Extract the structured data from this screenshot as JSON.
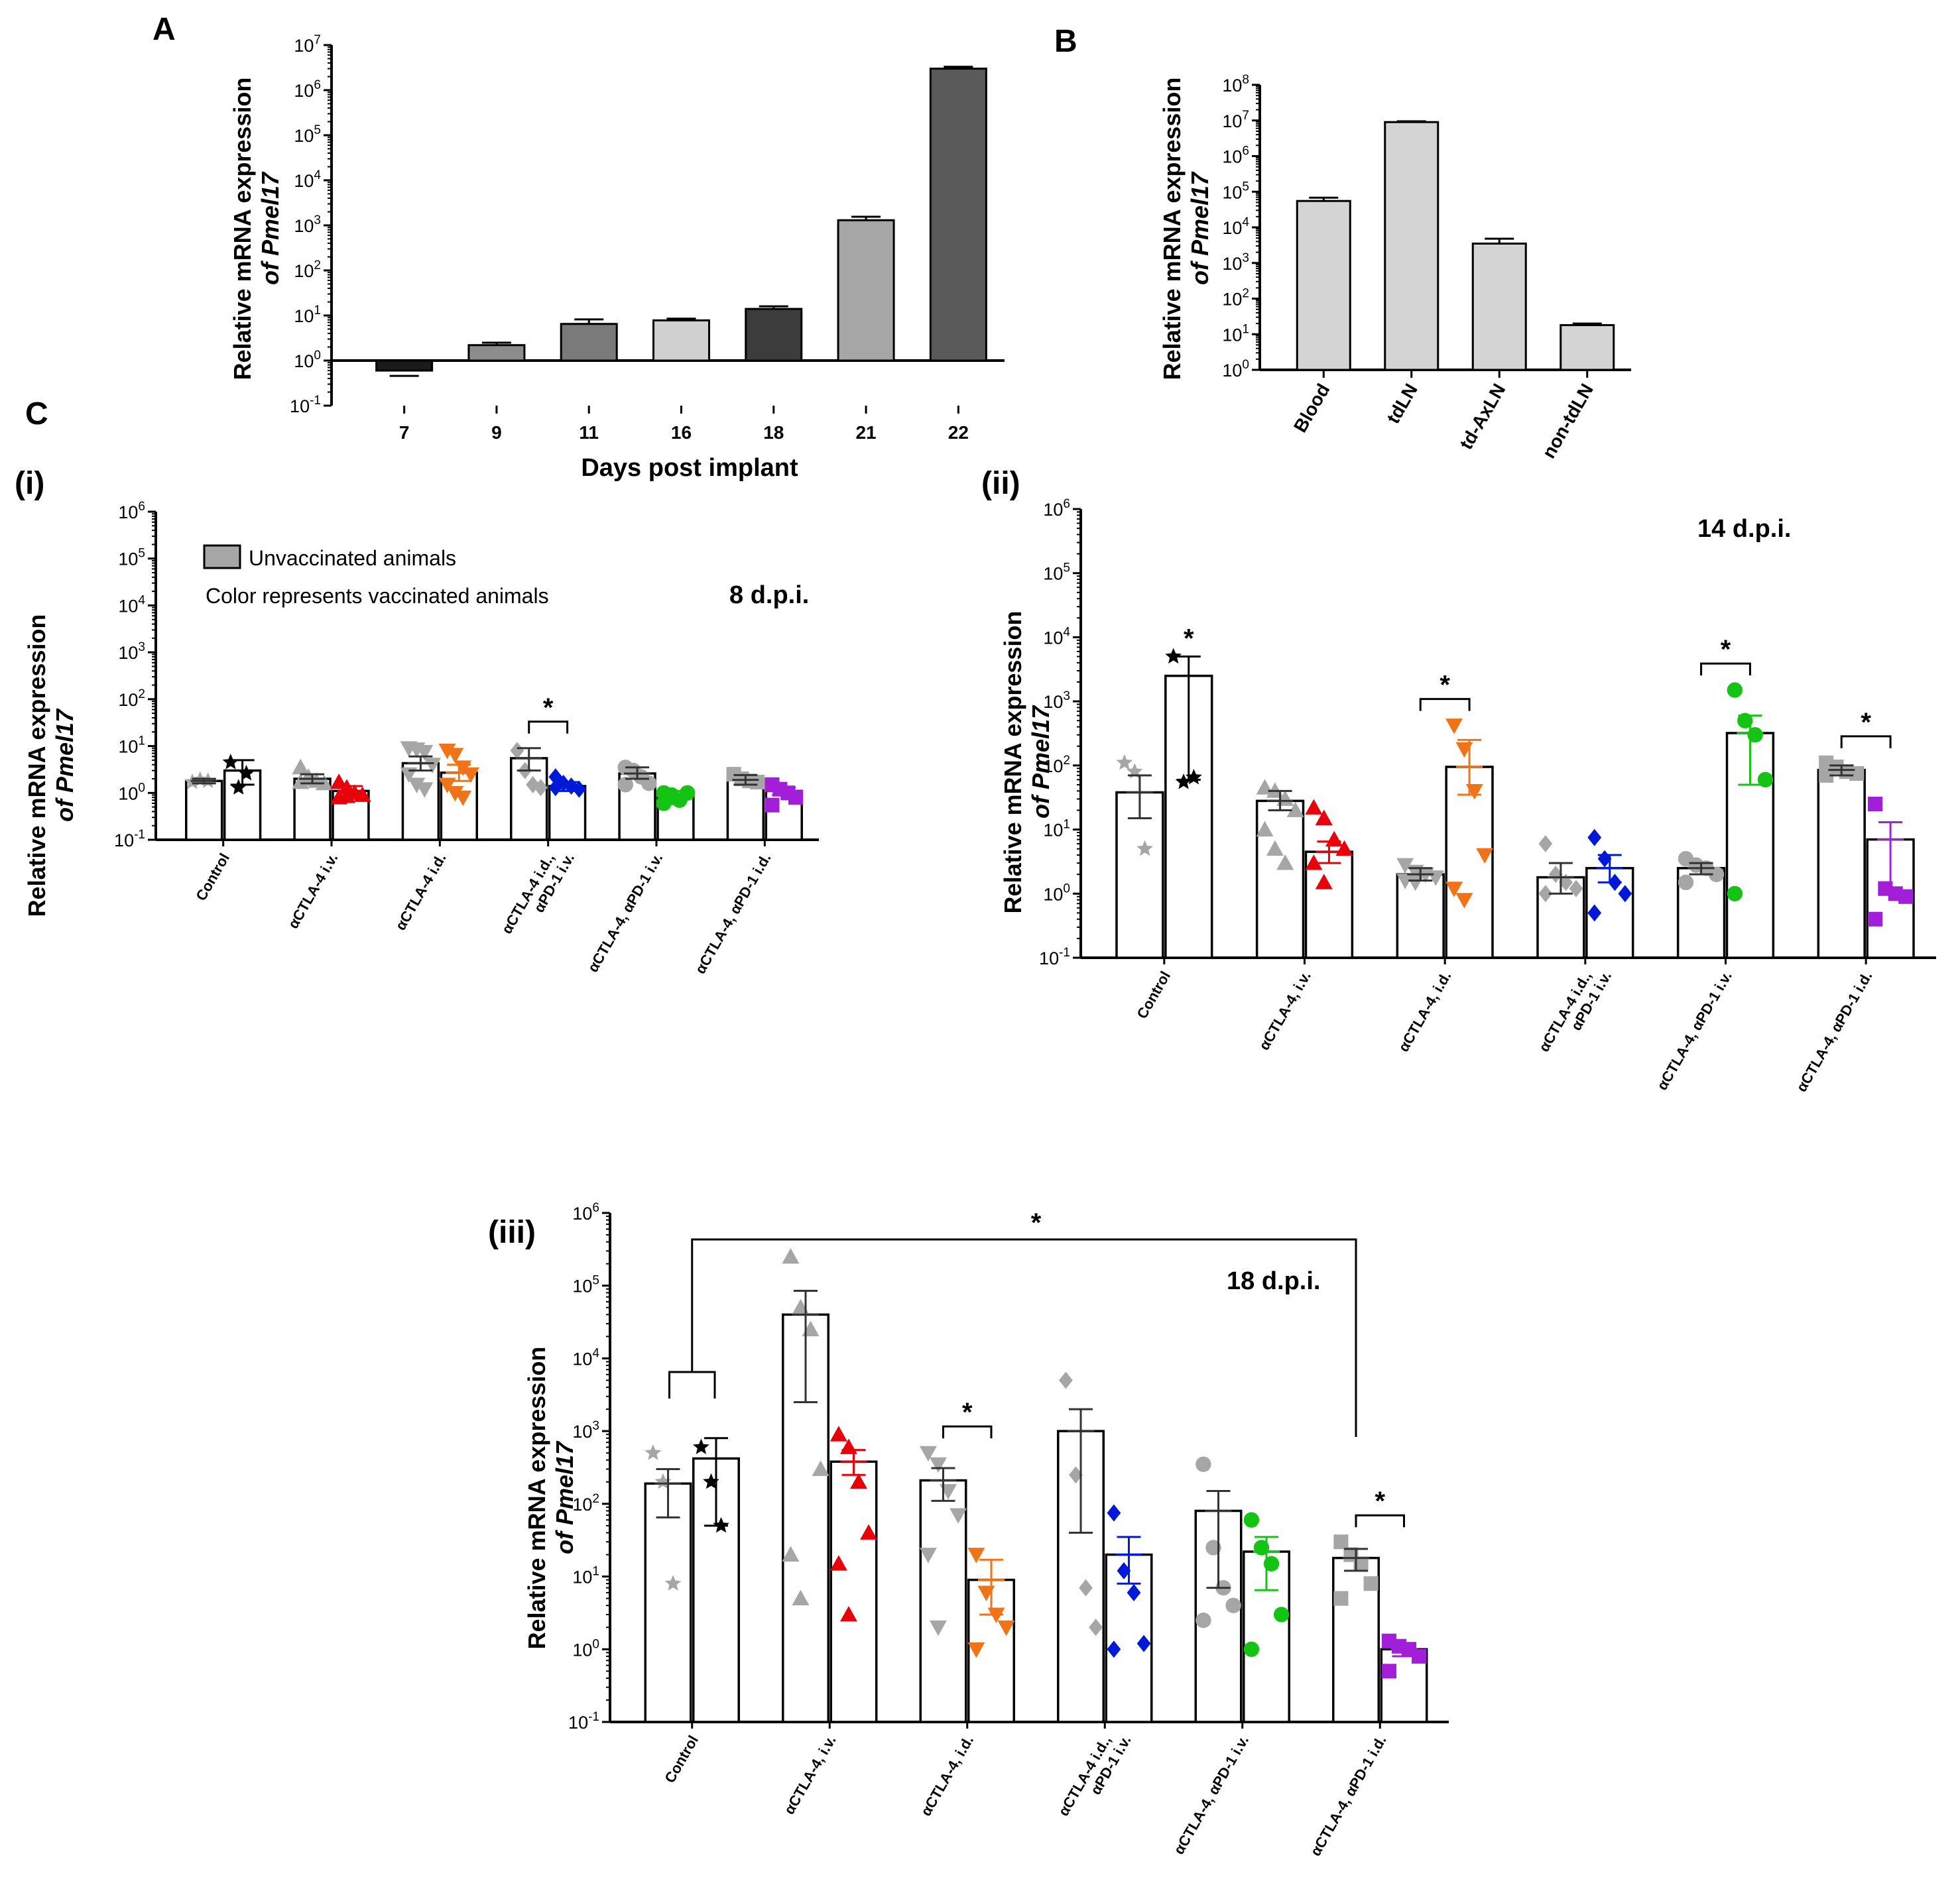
{
  "panel_labels": {
    "A": "A",
    "B": "B",
    "C": "C",
    "i": "(i)",
    "ii": "(ii)",
    "iii": "(iii)"
  },
  "ylabel_line1": "Relative mRNA expression",
  "ylabel_line2": "of Pmel17",
  "legend": {
    "unvaccinated": "Unvaccinated animals",
    "note": "Color represents vaccinated animals"
  },
  "colors": {
    "unvacc": "#a6a6a6",
    "red": "#e8000b",
    "orange": "#f07417",
    "blue": "#0019d6",
    "green": "#14c314",
    "purple": "#a21ed8",
    "black": "#000000"
  },
  "chart_data": [
    {
      "id": "A",
      "type": "bar",
      "yscale": "log",
      "xlabel": "Days post implant",
      "ylabel": "Relative mRNA expression of Pmel17",
      "ylim": [
        0.1,
        10000000
      ],
      "yticks": [
        "10-1",
        "100",
        "101",
        "102",
        "103",
        "104",
        "105",
        "106",
        "107"
      ],
      "categories": [
        "7",
        "9",
        "11",
        "16",
        "18",
        "21",
        "22"
      ],
      "values": [
        0.6,
        2.2,
        6.5,
        7.8,
        14,
        1300,
        3000000
      ],
      "errors": [
        0.68,
        2.5,
        8.2,
        8.5,
        16,
        1550,
        3300000
      ],
      "bar_colors": [
        "#1a1a1a",
        "#8c8c8c",
        "#7a7a7a",
        "#d0d0d0",
        "#3c3c3c",
        "#a6a6a6",
        "#5a5a5a"
      ]
    },
    {
      "id": "B",
      "type": "bar",
      "yscale": "log",
      "ylabel": "Relative mRNA expression of Pmel17",
      "ylim": [
        1,
        100000000
      ],
      "yticks": [
        "100",
        "101",
        "102",
        "103",
        "104",
        "105",
        "106",
        "107",
        "108"
      ],
      "categories": [
        "Blood",
        "tdLN",
        "td-AxLN",
        "non-tdLN"
      ],
      "values": [
        55000,
        9000000,
        3500,
        18
      ],
      "errors": [
        68000,
        9500000,
        4800,
        20
      ]
    },
    {
      "id": "Ci",
      "type": "bar",
      "yscale": "log",
      "title": "8 d.p.i.",
      "ylim": [
        0.1,
        1000000
      ],
      "yticks": [
        "10-1",
        "100",
        "101",
        "102",
        "103",
        "104",
        "105",
        "106"
      ],
      "groups": [
        {
          "label": "Control",
          "unvacc": {
            "mean": 1.8,
            "sem": [
              1.6,
              2.0
            ],
            "points": [
              1.7,
              1.9,
              1.8
            ],
            "marker": "star"
          },
          "vacc": {
            "mean": 3.0,
            "sem": [
              1.5,
              5.0
            ],
            "points": [
              4.5,
              1.3,
              2.6
            ],
            "marker": "star",
            "color": "#000000"
          }
        },
        {
          "label": "αCTLA-4 i.v.",
          "unvacc": {
            "mean": 2.0,
            "sem": [
              1.6,
              2.5
            ],
            "points": [
              3.5,
              2.0,
              1.8,
              1.6,
              1.7,
              2.2
            ],
            "marker": "tri-up"
          },
          "vacc": {
            "mean": 1.1,
            "sem": [
              0.8,
              1.4
            ],
            "points": [
              1.7,
              1.3,
              1.0,
              0.9,
              0.8,
              0.85
            ],
            "marker": "tri-up",
            "color": "#e8000b"
          }
        },
        {
          "label": "αCTLA-4 i.d.",
          "unvacc": {
            "mean": 4.3,
            "sem": [
              3.0,
              6.0
            ],
            "points": [
              9.0,
              8.5,
              7.5,
              4.0,
              2.5,
              1.5,
              1.2
            ],
            "marker": "tri-down"
          },
          "vacc": {
            "mean": 2.7,
            "sem": [
              1.8,
              4.0
            ],
            "points": [
              8.0,
              6.5,
              3.5,
              2.5,
              1.5,
              1.0,
              0.8
            ],
            "marker": "tri-down",
            "color": "#f07417"
          }
        },
        {
          "label": "αCTLA-4 i.d., αPD-1 i.v.",
          "label_lines": [
            "αCTLA-4 i.d.,",
            "αPD-1 i.v."
          ],
          "unvacc": {
            "mean": 5.5,
            "sem": [
              3.0,
              9.0
            ],
            "points": [
              8.0,
              3.0,
              1.5,
              1.3
            ],
            "marker": "diamond"
          },
          "vacc": {
            "mean": 1.4,
            "sem": [
              1.1,
              1.7
            ],
            "points": [
              2.2,
              1.6,
              1.4,
              1.2,
              1.3
            ],
            "marker": "diamond",
            "color": "#0019d6"
          },
          "significance": "*"
        },
        {
          "label": "αCTLA-4, αPD-1 i.v.",
          "unvacc": {
            "mean": 2.6,
            "sem": [
              2.0,
              3.5
            ],
            "points": [
              3.5,
              3.0,
              2.2,
              1.6,
              1.5
            ],
            "marker": "circle"
          },
          "vacc": {
            "mean": 0.9,
            "sem": [
              0.7,
              1.1
            ],
            "points": [
              1.0,
              0.9,
              0.7,
              1.0,
              0.6,
              0.8
            ],
            "marker": "circle",
            "color": "#14c314"
          }
        },
        {
          "label": "αCTLA-4, αPD-1 i.d.",
          "unvacc": {
            "mean": 1.9,
            "sem": [
              1.5,
              2.4
            ],
            "points": [
              2.5,
              2.0,
              1.8,
              1.7
            ],
            "marker": "square"
          },
          "vacc": {
            "mean": 1.1,
            "sem": [
              0.9,
              1.3
            ],
            "points": [
              1.5,
              1.2,
              1.0,
              0.8,
              0.55
            ],
            "marker": "square",
            "color": "#a21ed8"
          }
        }
      ]
    },
    {
      "id": "Cii",
      "type": "bar",
      "yscale": "log",
      "title": "14 d.p.i.",
      "ylim": [
        0.1,
        1000000
      ],
      "yticks": [
        "10-1",
        "100",
        "101",
        "102",
        "103",
        "104",
        "105",
        "106"
      ],
      "groups": [
        {
          "label": "Control",
          "unvacc": {
            "mean": 38,
            "sem": [
              15,
              70
            ],
            "points": [
              110,
              80,
              5
            ],
            "marker": "star"
          },
          "vacc": {
            "mean": 2500,
            "sem": [
              60,
              5000
            ],
            "points": [
              5000,
              55,
              65
            ],
            "marker": "star",
            "color": "#000000"
          },
          "significance": "*"
        },
        {
          "label": "αCTLA-4, i.v.",
          "unvacc": {
            "mean": 28,
            "sem": [
              20,
              40
            ],
            "points": [
              45,
              40,
              30,
              20,
              10,
              5,
              3
            ],
            "marker": "tri-up"
          },
          "vacc": {
            "mean": 4.5,
            "sem": [
              3.0,
              6.5
            ],
            "points": [
              22,
              15,
              7,
              5,
              3,
              1.5
            ],
            "marker": "tri-up",
            "color": "#e8000b"
          }
        },
        {
          "label": "αCTLA-4, i.d.",
          "unvacc": {
            "mean": 2.0,
            "sem": [
              1.6,
              2.5
            ],
            "points": [
              2.8,
              2.2,
              2.0,
              1.8,
              1.6,
              1.5
            ],
            "marker": "tri-down"
          },
          "vacc": {
            "mean": 95,
            "sem": [
              35,
              250
            ],
            "points": [
              420,
              180,
              40,
              4,
              1.2,
              0.8
            ],
            "marker": "tri-down",
            "color": "#f07417"
          },
          "significance": "*"
        },
        {
          "label": "αCTLA-4 i.d., αPD-1 i.v.",
          "label_lines": [
            "αCTLA-4 i.d.,",
            "αPD-1 i.v."
          ],
          "unvacc": {
            "mean": 1.8,
            "sem": [
              1.0,
              3.0
            ],
            "points": [
              6.0,
              2.0,
              1.5,
              1.2,
              1.0
            ],
            "marker": "diamond"
          },
          "vacc": {
            "mean": 2.5,
            "sem": [
              1.5,
              4.0
            ],
            "points": [
              7.5,
              3.5,
              1.5,
              1.0,
              0.5
            ],
            "marker": "diamond",
            "color": "#0019d6"
          }
        },
        {
          "label": "αCTLA-4, αPD-1 i.v.",
          "unvacc": {
            "mean": 2.5,
            "sem": [
              2.0,
              3.0
            ],
            "points": [
              3.5,
              2.8,
              2.5,
              2.0,
              1.5
            ],
            "marker": "circle"
          },
          "vacc": {
            "mean": 320,
            "sem": [
              50,
              600
            ],
            "points": [
              1500,
              500,
              300,
              60,
              1.0
            ],
            "marker": "circle",
            "color": "#14c314"
          },
          "significance": "*"
        },
        {
          "label": "αCTLA-4, αPD-1 i.d.",
          "unvacc": {
            "mean": 85,
            "sem": [
              70,
              100
            ],
            "points": [
              110,
              95,
              80,
              75,
              70
            ],
            "marker": "square"
          },
          "vacc": {
            "mean": 7,
            "sem": [
              1.0,
              13
            ],
            "points": [
              25,
              1.2,
              1.0,
              0.9,
              0.4
            ],
            "marker": "square",
            "color": "#a21ed8"
          },
          "significance": "*"
        }
      ]
    },
    {
      "id": "Ciii",
      "type": "bar",
      "yscale": "log",
      "title": "18 d.p.i.",
      "ylim": [
        0.1,
        1000000
      ],
      "yticks": [
        "10-1",
        "100",
        "101",
        "102",
        "103",
        "104",
        "105",
        "106"
      ],
      "groups": [
        {
          "label": "Control",
          "unvacc": {
            "mean": 190,
            "sem": [
              65,
              300
            ],
            "points": [
              500,
              200,
              8
            ],
            "marker": "star"
          },
          "vacc": {
            "mean": 420,
            "sem": [
              50,
              800
            ],
            "points": [
              600,
              200,
              50
            ],
            "marker": "star",
            "color": "#000000"
          }
        },
        {
          "label": "αCTLA-4, i.v.",
          "unvacc": {
            "mean": 40000,
            "sem": [
              2500,
              85000
            ],
            "points": [
              250000,
              50000,
              25000,
              300,
              20,
              5
            ],
            "marker": "tri-up"
          },
          "vacc": {
            "mean": 380,
            "sem": [
              250,
              550
            ],
            "points": [
              900,
              600,
              200,
              40,
              15,
              3
            ],
            "marker": "tri-up",
            "color": "#e8000b"
          }
        },
        {
          "label": "αCTLA-4, i.d.",
          "unvacc": {
            "mean": 210,
            "sem": [
              110,
              310
            ],
            "points": [
              500,
              350,
              150,
              70,
              20,
              2
            ],
            "marker": "tri-down"
          },
          "vacc": {
            "mean": 9,
            "sem": [
              3,
              17
            ],
            "points": [
              20,
              6,
              3,
              2,
              1
            ],
            "marker": "tri-down",
            "color": "#f07417"
          },
          "significance": "*"
        },
        {
          "label": "αCTLA-4 i.d., αPD-1 i.v.",
          "label_lines": [
            "αCTLA-4 i.d.,",
            "αPD-1 i.v."
          ],
          "unvacc": {
            "mean": 1000,
            "sem": [
              40,
              2000
            ],
            "points": [
              5000,
              250,
              7,
              2
            ],
            "marker": "diamond"
          },
          "vacc": {
            "mean": 20,
            "sem": [
              8,
              35
            ],
            "points": [
              75,
              12,
              6,
              1.2,
              1.0
            ],
            "marker": "diamond",
            "color": "#0019d6"
          }
        },
        {
          "label": "αCTLA-4, αPD-1 i.v.",
          "unvacc": {
            "mean": 80,
            "sem": [
              7,
              150
            ],
            "points": [
              350,
              25,
              7,
              4,
              2.5
            ],
            "marker": "circle"
          },
          "vacc": {
            "mean": 22,
            "sem": [
              6.5,
              35
            ],
            "points": [
              60,
              25,
              15,
              3,
              1.0
            ],
            "marker": "circle",
            "color": "#14c314"
          }
        },
        {
          "label": "αCTLA-4, αPD-1 i.d.",
          "unvacc": {
            "mean": 18,
            "sem": [
              12,
              24
            ],
            "points": [
              30,
              20,
              15,
              8,
              5
            ],
            "marker": "square"
          },
          "vacc": {
            "mean": 1.0,
            "sem": [
              0.8,
              1.2
            ],
            "points": [
              1.3,
              1.1,
              1.0,
              0.8,
              0.5
            ],
            "marker": "square",
            "color": "#a21ed8"
          },
          "significance": "*"
        }
      ],
      "overall_significance": "*"
    }
  ]
}
